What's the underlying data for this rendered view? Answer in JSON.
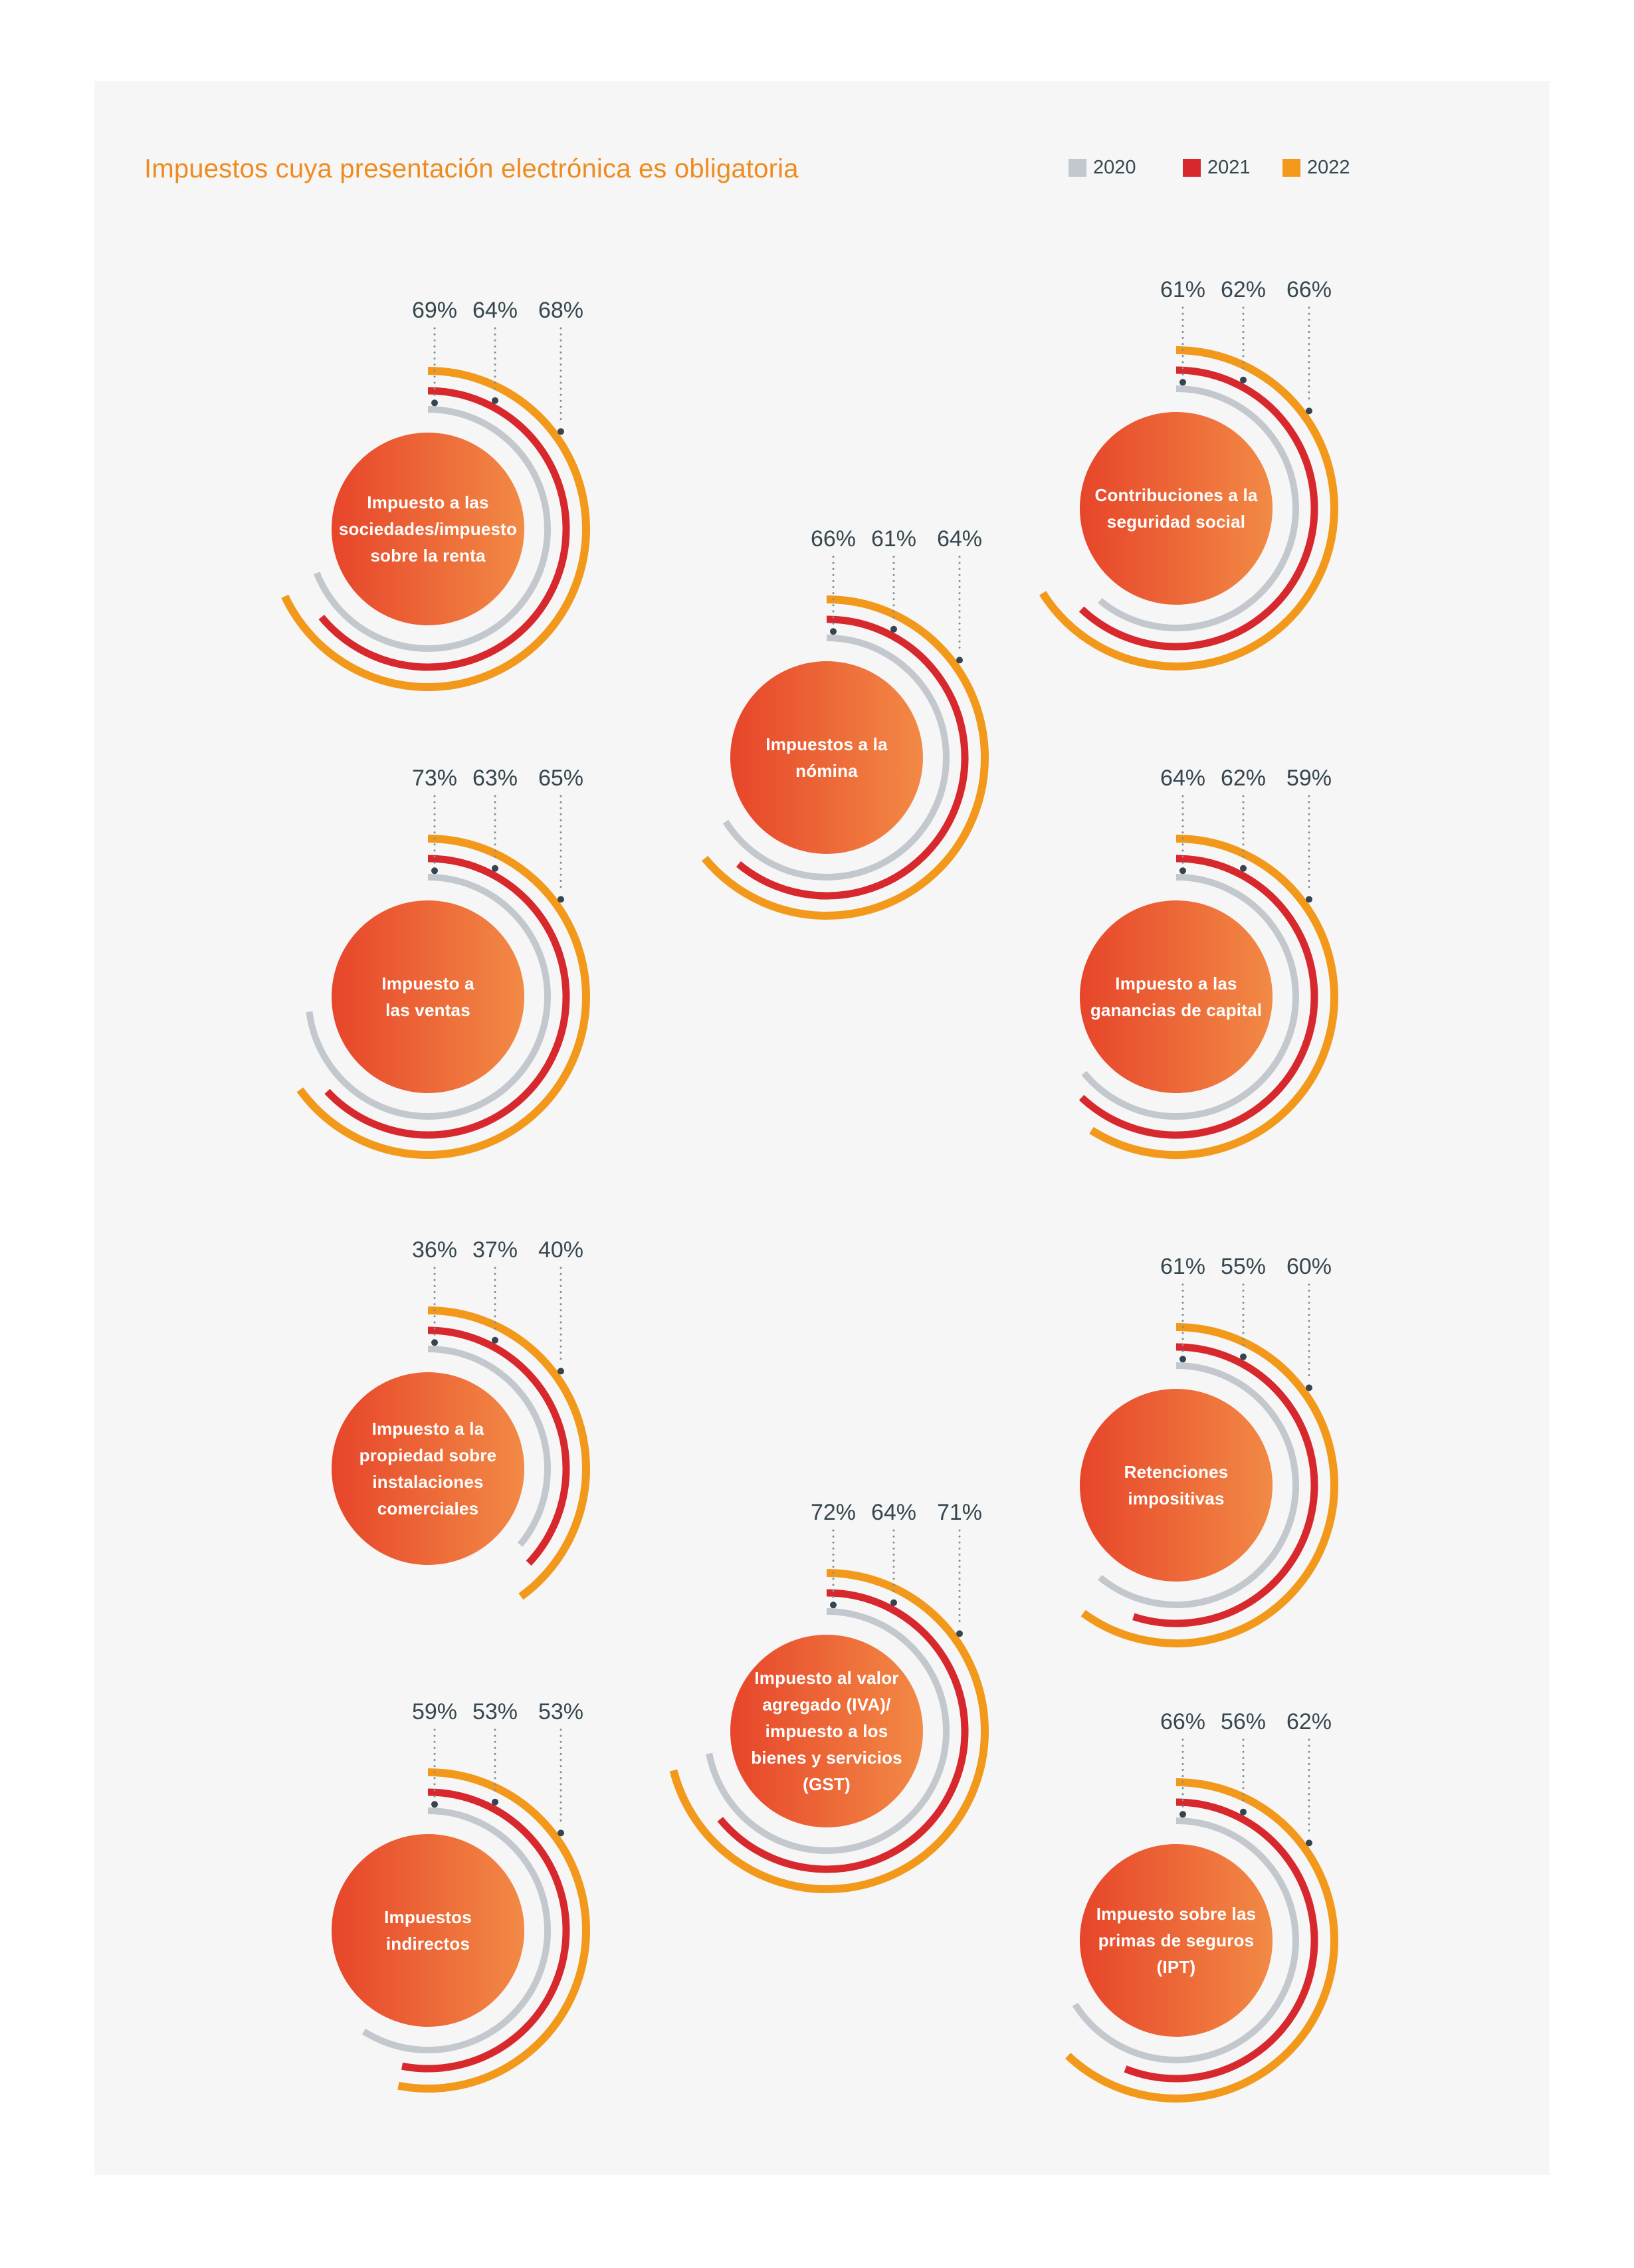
{
  "page": {
    "background": "#ffffff",
    "panel_background": "#f6f6f7"
  },
  "header": {
    "title": "Impuestos cuya presentación electrónica es obligatoria",
    "title_color": "#ee8c1f"
  },
  "legend": {
    "items": [
      {
        "label": "2020",
        "color": "#c3c8ce"
      },
      {
        "label": "2021",
        "color": "#d7282e"
      },
      {
        "label": "2022",
        "color": "#f2991b"
      }
    ]
  },
  "style": {
    "dot_color": "#34454f",
    "leader_line_color": "#858e96",
    "value_label_color": "#37474f",
    "bubble_gradient_from": "#e7452a",
    "bubble_gradient_to": "#f28a45"
  },
  "chart_data": {
    "type": "bar",
    "variant": "radial-arc-small-multiples",
    "title": "Impuestos cuya presentación electrónica es obligatoria",
    "unit": "%",
    "value_range": [
      0,
      100
    ],
    "series_years": [
      "2020",
      "2021",
      "2022"
    ],
    "series_colors": {
      "2020": "#c3c8ce",
      "2021": "#d7282e",
      "2022": "#f2991b"
    },
    "legend_position": "top-right",
    "items": [
      {
        "label": "Impuesto a las\nsociedades/impuesto\nsobre la renta",
        "values": [
          69,
          64,
          68
        ]
      },
      {
        "label": "Contribuciones a la\nseguridad social",
        "values": [
          61,
          62,
          66
        ]
      },
      {
        "label": "Impuestos a la\nnómina",
        "values": [
          66,
          61,
          64
        ]
      },
      {
        "label": "Impuesto a\nlas ventas",
        "values": [
          73,
          63,
          65
        ]
      },
      {
        "label": "Impuesto a las\nganancias de capital",
        "values": [
          64,
          62,
          59
        ]
      },
      {
        "label": "Impuesto a la\npropiedad sobre\ninstalaciones\ncomerciales",
        "values": [
          36,
          37,
          40
        ]
      },
      {
        "label": "Retenciones\nimpositivas",
        "values": [
          61,
          55,
          60
        ]
      },
      {
        "label": "Impuesto al valor\nagregado (IVA)/\nimpuesto a los\nbienes y servicios\n(GST)",
        "values": [
          72,
          64,
          71
        ]
      },
      {
        "label": "Impuestos\nindirectos",
        "values": [
          59,
          53,
          53
        ]
      },
      {
        "label": "Impuesto sobre las\nprimas de seguros\n(IPT)",
        "values": [
          66,
          56,
          62
        ]
      }
    ]
  }
}
